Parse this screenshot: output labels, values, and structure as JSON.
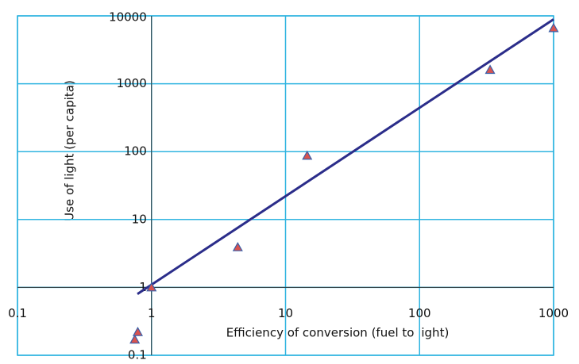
{
  "chart_data": {
    "type": "scatter",
    "x_label": "Efficiency of conversion (fuel to light)",
    "y_label": "Use of light (per capita)",
    "x": [
      0.75,
      0.79,
      1.0,
      4.4,
      14.5,
      336,
      1000
    ],
    "values": [
      0.17,
      0.22,
      1.0,
      3.9,
      87,
      1600,
      6600
    ],
    "color": "#d9534f",
    "edge_color": "#3a5fa8",
    "trendline": {
      "x": [
        0.785,
        1000
      ],
      "values": [
        0.8,
        8900
      ],
      "color": "#2b2d8a"
    },
    "xlim": [
      0.1,
      1000
    ],
    "ylim": [
      0.1,
      10000
    ],
    "xticks": [
      0.1,
      1,
      10,
      100,
      1000
    ],
    "yticks": [
      0.1,
      1,
      10,
      100,
      1000,
      10000
    ],
    "x_log": true,
    "y_log": true,
    "x_axis_at": 1,
    "y_axis_at": 1,
    "grid": true,
    "grid_color": "#2fb4e0"
  }
}
